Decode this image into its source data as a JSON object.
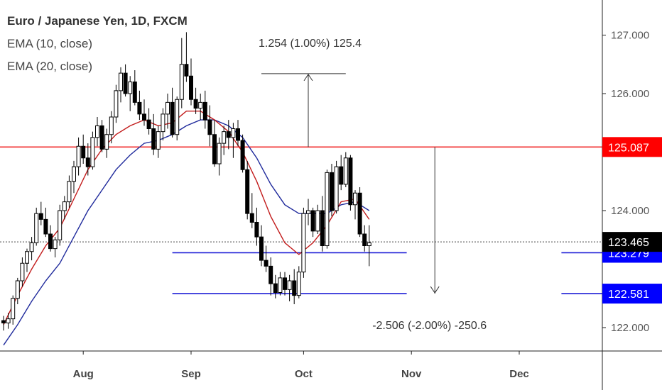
{
  "chart_data": {
    "type": "candlestick",
    "title": "Euro / Japanese Yen, 1D, FXCM",
    "indicators": [
      {
        "name": "EMA (10, close)",
        "color": "#c21b1b"
      },
      {
        "name": "EMA (20, close)",
        "color": "#1f2a9c"
      }
    ],
    "ylim": [
      121.6,
      127.6
    ],
    "y_ticks": [
      122.0,
      124.0,
      126.0,
      127.0
    ],
    "y_tick_labels": [
      "122.000",
      "124.000",
      "126.000",
      "127.000"
    ],
    "x_tick_labels": [
      {
        "label": "Aug",
        "index": 17
      },
      {
        "label": "Sep",
        "index": 40
      },
      {
        "label": "Oct",
        "index": 64
      },
      {
        "label": "Nov",
        "index": 87
      },
      {
        "label": "Dec",
        "index": 110
      }
    ],
    "x_domain": [
      0,
      134
    ],
    "candles": [
      [
        122.12,
        122.2,
        121.95,
        122.08
      ],
      [
        122.08,
        122.25,
        121.98,
        122.15
      ],
      [
        122.15,
        122.55,
        122.05,
        122.5
      ],
      [
        122.5,
        122.85,
        122.4,
        122.8
      ],
      [
        122.8,
        123.2,
        122.7,
        123.1
      ],
      [
        123.1,
        123.35,
        122.95,
        123.3
      ],
      [
        123.3,
        123.55,
        123.15,
        123.45
      ],
      [
        123.45,
        124.05,
        123.4,
        123.95
      ],
      [
        123.95,
        124.15,
        123.75,
        123.85
      ],
      [
        123.85,
        124.05,
        123.55,
        123.6
      ],
      [
        123.6,
        123.75,
        123.3,
        123.35
      ],
      [
        123.35,
        123.55,
        123.2,
        123.5
      ],
      [
        123.5,
        124.1,
        123.4,
        124.0
      ],
      [
        124.0,
        124.25,
        123.85,
        124.15
      ],
      [
        124.15,
        124.6,
        124.05,
        124.5
      ],
      [
        124.5,
        124.85,
        124.3,
        124.75
      ],
      [
        124.75,
        125.25,
        124.6,
        125.1
      ],
      [
        125.1,
        125.3,
        124.8,
        124.9
      ],
      [
        124.9,
        125.15,
        124.6,
        124.75
      ],
      [
        124.75,
        125.35,
        124.7,
        125.25
      ],
      [
        125.25,
        125.6,
        125.1,
        125.45
      ],
      [
        125.45,
        125.55,
        125.0,
        125.05
      ],
      [
        125.05,
        125.4,
        124.9,
        125.3
      ],
      [
        125.3,
        125.7,
        125.15,
        125.6
      ],
      [
        125.6,
        126.15,
        125.5,
        126.05
      ],
      [
        126.05,
        126.45,
        125.85,
        126.35
      ],
      [
        126.35,
        126.5,
        125.95,
        126.0
      ],
      [
        126.0,
        126.3,
        125.7,
        126.2
      ],
      [
        126.2,
        126.4,
        125.8,
        125.85
      ],
      [
        125.85,
        126.05,
        125.55,
        125.65
      ],
      [
        125.65,
        125.9,
        125.45,
        125.55
      ],
      [
        125.55,
        125.75,
        125.3,
        125.4
      ],
      [
        125.4,
        125.65,
        124.95,
        125.05
      ],
      [
        125.05,
        125.45,
        124.9,
        125.35
      ],
      [
        125.35,
        125.75,
        125.2,
        125.65
      ],
      [
        125.65,
        126.0,
        125.4,
        125.85
      ],
      [
        125.85,
        126.1,
        125.25,
        125.3
      ],
      [
        125.3,
        125.95,
        125.2,
        125.9
      ],
      [
        125.9,
        126.95,
        125.75,
        126.5
      ],
      [
        126.5,
        127.05,
        126.2,
        126.3
      ],
      [
        126.3,
        126.6,
        125.8,
        125.9
      ],
      [
        125.9,
        126.1,
        125.65,
        125.75
      ],
      [
        125.75,
        126.0,
        125.55,
        125.85
      ],
      [
        125.85,
        126.05,
        125.4,
        125.55
      ],
      [
        125.55,
        125.8,
        125.1,
        125.3
      ],
      [
        125.3,
        125.55,
        124.75,
        124.8
      ],
      [
        124.8,
        125.25,
        124.6,
        125.15
      ],
      [
        125.15,
        125.45,
        124.95,
        125.35
      ],
      [
        125.35,
        125.55,
        125.05,
        125.25
      ],
      [
        125.25,
        125.5,
        124.9,
        125.4
      ],
      [
        125.4,
        125.55,
        125.1,
        125.2
      ],
      [
        125.2,
        125.3,
        124.65,
        124.7
      ],
      [
        124.7,
        124.85,
        123.85,
        123.95
      ],
      [
        123.95,
        124.3,
        123.7,
        123.8
      ],
      [
        123.8,
        124.05,
        123.4,
        123.55
      ],
      [
        123.55,
        123.75,
        123.05,
        123.15
      ],
      [
        123.15,
        123.4,
        122.95,
        123.05
      ],
      [
        123.05,
        123.2,
        122.55,
        122.75
      ],
      [
        122.75,
        122.9,
        122.5,
        122.6
      ],
      [
        122.6,
        122.95,
        122.55,
        122.85
      ],
      [
        122.85,
        122.95,
        122.55,
        122.65
      ],
      [
        122.65,
        122.9,
        122.45,
        122.8
      ],
      [
        122.8,
        123.0,
        122.4,
        122.55
      ],
      [
        122.55,
        123.05,
        122.5,
        122.95
      ],
      [
        122.95,
        124.05,
        122.85,
        123.95
      ],
      [
        123.95,
        124.2,
        123.75,
        124.0
      ],
      [
        124.0,
        124.05,
        123.55,
        123.65
      ],
      [
        123.65,
        124.1,
        123.6,
        124.0
      ],
      [
        124.0,
        124.25,
        123.3,
        123.4
      ],
      [
        123.4,
        124.7,
        123.35,
        124.65
      ],
      [
        124.65,
        124.8,
        123.9,
        124.0
      ],
      [
        124.0,
        124.85,
        123.95,
        124.75
      ],
      [
        124.75,
        124.95,
        124.35,
        124.45
      ],
      [
        124.45,
        125.0,
        124.4,
        124.9
      ],
      [
        124.9,
        124.95,
        124.0,
        124.1
      ],
      [
        124.1,
        124.35,
        123.85,
        124.3
      ],
      [
        124.3,
        124.4,
        123.55,
        123.6
      ],
      [
        123.6,
        123.75,
        123.3,
        123.4
      ],
      [
        123.4,
        123.75,
        123.05,
        123.45
      ]
    ],
    "ema10": [
      [
        0,
        122.05
      ],
      [
        3,
        122.55
      ],
      [
        6,
        123.0
      ],
      [
        9,
        123.4
      ],
      [
        12,
        123.7
      ],
      [
        15,
        124.2
      ],
      [
        18,
        124.7
      ],
      [
        21,
        125.05
      ],
      [
        24,
        125.3
      ],
      [
        27,
        125.45
      ],
      [
        30,
        125.55
      ],
      [
        33,
        125.45
      ],
      [
        36,
        125.5
      ],
      [
        39,
        125.7
      ],
      [
        42,
        125.7
      ],
      [
        45,
        125.55
      ],
      [
        48,
        125.35
      ],
      [
        51,
        125.0
      ],
      [
        54,
        124.5
      ],
      [
        57,
        123.9
      ],
      [
        60,
        123.45
      ],
      [
        63,
        123.25
      ],
      [
        66,
        123.45
      ],
      [
        69,
        123.75
      ],
      [
        72,
        124.15
      ],
      [
        75,
        124.2
      ],
      [
        78,
        123.85
      ]
    ],
    "ema20": [
      [
        0,
        121.7
      ],
      [
        3,
        122.05
      ],
      [
        6,
        122.45
      ],
      [
        9,
        122.8
      ],
      [
        12,
        123.1
      ],
      [
        15,
        123.55
      ],
      [
        18,
        124.0
      ],
      [
        21,
        124.35
      ],
      [
        24,
        124.7
      ],
      [
        27,
        124.95
      ],
      [
        30,
        125.15
      ],
      [
        33,
        125.2
      ],
      [
        36,
        125.3
      ],
      [
        39,
        125.45
      ],
      [
        42,
        125.55
      ],
      [
        45,
        125.55
      ],
      [
        48,
        125.45
      ],
      [
        51,
        125.25
      ],
      [
        54,
        124.9
      ],
      [
        57,
        124.45
      ],
      [
        60,
        124.1
      ],
      [
        63,
        123.95
      ],
      [
        66,
        123.95
      ],
      [
        69,
        123.95
      ],
      [
        72,
        124.1
      ],
      [
        75,
        124.15
      ],
      [
        78,
        124.0
      ]
    ],
    "horizontal_levels": [
      {
        "value": 125.087,
        "label": "125.087",
        "color": "#f23030",
        "badge": "#ff0000"
      },
      {
        "value": 123.279,
        "label": "123.279",
        "color": "#1c1cd6",
        "badge": "#0000ff"
      },
      {
        "value": 122.581,
        "label": "122.581",
        "color": "#1c1cd6",
        "badge": "#0000ff"
      }
    ],
    "last_price": {
      "value": 123.465,
      "label": "123.465",
      "badge": "#000000"
    },
    "measurements": [
      {
        "text": "1.254 (1.00%) 125.4",
        "from": 125.087,
        "to": 126.341,
        "x_index": 65,
        "x_from": 55,
        "x_to": 73
      },
      {
        "text": "-2.506 (-2.00%) -250.6",
        "from": 125.087,
        "to": 122.581,
        "x_index": 92
      }
    ],
    "colors": {
      "up": "#ffffff",
      "down": "#000000",
      "wick": "#000000",
      "axis": "#222222"
    }
  }
}
